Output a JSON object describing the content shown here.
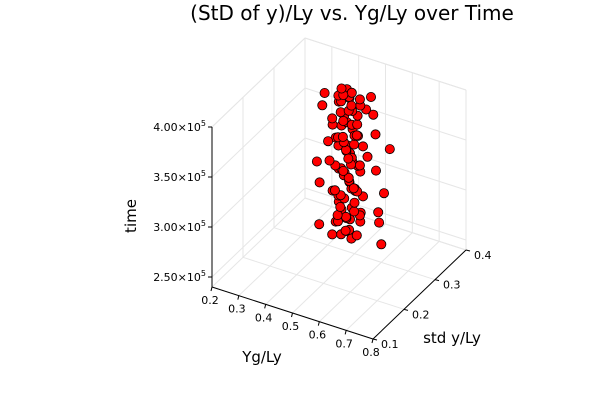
{
  "chart_data": {
    "type": "scatter",
    "title": "(StD of y)/Ly vs. Yg/Ly over Time",
    "xlabel": "Yg/Ly",
    "ylabel": "std y/Ly",
    "zlabel": "time",
    "xlim": [
      0.2,
      0.8
    ],
    "ylim": [
      0.1,
      0.4
    ],
    "zlim": [
      240000,
      400000
    ],
    "x_ticks": [
      "0.2",
      "0.3",
      "0.4",
      "0.5",
      "0.6",
      "0.7",
      "0.8"
    ],
    "x_tick_values": [
      0.2,
      0.3,
      0.4,
      0.5,
      0.6,
      0.7,
      0.8
    ],
    "y_ticks": [
      "0.1",
      "0.2",
      "0.3",
      "0.4"
    ],
    "y_tick_values": [
      0.1,
      0.2,
      0.3,
      0.4
    ],
    "z_ticks": [
      {
        "value": 250000,
        "mantissa": "2.50×10",
        "exp": "5"
      },
      {
        "value": 300000,
        "mantissa": "3.00×10",
        "exp": "5"
      },
      {
        "value": 350000,
        "mantissa": "3.50×10",
        "exp": "5"
      },
      {
        "value": 400000,
        "mantissa": "4.00×10",
        "exp": "5"
      }
    ],
    "grid": true,
    "marker_color": "#ff0000",
    "marker_edge_color": "#000000",
    "points": [
      [
        0.45,
        0.3,
        255000
      ],
      [
        0.47,
        0.31,
        256000
      ],
      [
        0.5,
        0.29,
        258000
      ],
      [
        0.44,
        0.28,
        260000
      ],
      [
        0.48,
        0.3,
        262000
      ],
      [
        0.52,
        0.29,
        263000
      ],
      [
        0.46,
        0.32,
        265000
      ],
      [
        0.43,
        0.3,
        266000
      ],
      [
        0.49,
        0.28,
        268000
      ],
      [
        0.51,
        0.31,
        270000
      ],
      [
        0.45,
        0.29,
        271000
      ],
      [
        0.47,
        0.3,
        273000
      ],
      [
        0.5,
        0.32,
        275000
      ],
      [
        0.44,
        0.31,
        276000
      ],
      [
        0.48,
        0.29,
        278000
      ],
      [
        0.52,
        0.3,
        280000
      ],
      [
        0.46,
        0.28,
        281000
      ],
      [
        0.43,
        0.31,
        283000
      ],
      [
        0.49,
        0.3,
        285000
      ],
      [
        0.51,
        0.29,
        286000
      ],
      [
        0.45,
        0.31,
        288000
      ],
      [
        0.47,
        0.28,
        290000
      ],
      [
        0.5,
        0.3,
        291000
      ],
      [
        0.44,
        0.3,
        293000
      ],
      [
        0.48,
        0.32,
        295000
      ],
      [
        0.52,
        0.31,
        296000
      ],
      [
        0.46,
        0.29,
        298000
      ],
      [
        0.43,
        0.29,
        300000
      ],
      [
        0.49,
        0.31,
        301000
      ],
      [
        0.51,
        0.3,
        303000
      ],
      [
        0.45,
        0.28,
        305000
      ],
      [
        0.47,
        0.31,
        306000
      ],
      [
        0.5,
        0.29,
        308000
      ],
      [
        0.44,
        0.32,
        310000
      ],
      [
        0.48,
        0.3,
        311000
      ],
      [
        0.52,
        0.28,
        313000
      ],
      [
        0.46,
        0.3,
        315000
      ],
      [
        0.43,
        0.31,
        316000
      ],
      [
        0.49,
        0.29,
        318000
      ],
      [
        0.51,
        0.31,
        320000
      ],
      [
        0.45,
        0.3,
        321000
      ],
      [
        0.47,
        0.29,
        323000
      ],
      [
        0.5,
        0.31,
        325000
      ],
      [
        0.44,
        0.29,
        326000
      ],
      [
        0.48,
        0.31,
        328000
      ],
      [
        0.52,
        0.3,
        330000
      ],
      [
        0.46,
        0.32,
        331000
      ],
      [
        0.43,
        0.28,
        333000
      ],
      [
        0.49,
        0.3,
        335000
      ],
      [
        0.51,
        0.28,
        336000
      ],
      [
        0.45,
        0.32,
        338000
      ],
      [
        0.47,
        0.3,
        340000
      ],
      [
        0.5,
        0.28,
        341000
      ],
      [
        0.44,
        0.3,
        343000
      ],
      [
        0.48,
        0.29,
        345000
      ],
      [
        0.52,
        0.31,
        346000
      ],
      [
        0.46,
        0.3,
        348000
      ],
      [
        0.43,
        0.3,
        350000
      ],
      [
        0.49,
        0.32,
        351000
      ],
      [
        0.51,
        0.29,
        353000
      ],
      [
        0.45,
        0.29,
        355000
      ],
      [
        0.47,
        0.32,
        356000
      ],
      [
        0.5,
        0.3,
        358000
      ],
      [
        0.44,
        0.31,
        360000
      ],
      [
        0.48,
        0.28,
        361000
      ],
      [
        0.52,
        0.29,
        363000
      ],
      [
        0.46,
        0.31,
        365000
      ],
      [
        0.43,
        0.29,
        366000
      ],
      [
        0.49,
        0.3,
        368000
      ],
      [
        0.51,
        0.3,
        370000
      ],
      [
        0.45,
        0.31,
        371000
      ],
      [
        0.47,
        0.29,
        373000
      ],
      [
        0.5,
        0.31,
        375000
      ],
      [
        0.44,
        0.28,
        376000
      ],
      [
        0.48,
        0.31,
        378000
      ],
      [
        0.52,
        0.32,
        380000
      ],
      [
        0.46,
        0.29,
        381000
      ],
      [
        0.43,
        0.31,
        383000
      ],
      [
        0.49,
        0.29,
        385000
      ],
      [
        0.51,
        0.31,
        386000
      ],
      [
        0.45,
        0.3,
        388000
      ],
      [
        0.47,
        0.31,
        390000
      ],
      [
        0.5,
        0.29,
        391000
      ],
      [
        0.44,
        0.3,
        393000
      ],
      [
        0.48,
        0.3,
        395000
      ],
      [
        0.52,
        0.3,
        396000
      ],
      [
        0.46,
        0.31,
        398000
      ],
      [
        0.49,
        0.3,
        400000
      ],
      [
        0.47,
        0.29,
        399000
      ],
      [
        0.44,
        0.31,
        397000
      ],
      [
        0.6,
        0.3,
        258000
      ],
      [
        0.58,
        0.31,
        275000
      ],
      [
        0.6,
        0.29,
        293000
      ],
      [
        0.61,
        0.3,
        310000
      ],
      [
        0.58,
        0.3,
        330000
      ],
      [
        0.62,
        0.31,
        352000
      ],
      [
        0.59,
        0.29,
        370000
      ],
      [
        0.57,
        0.3,
        385000
      ],
      [
        0.55,
        0.31,
        398000
      ],
      [
        0.56,
        0.29,
        345000
      ],
      [
        0.38,
        0.29,
        262000
      ],
      [
        0.37,
        0.3,
        300000
      ],
      [
        0.39,
        0.31,
        340000
      ],
      [
        0.38,
        0.3,
        378000
      ],
      [
        0.4,
        0.29,
        395000
      ],
      [
        0.36,
        0.3,
        320000
      ]
    ]
  }
}
